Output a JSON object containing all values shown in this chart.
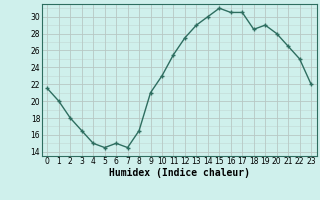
{
  "x": [
    0,
    1,
    2,
    3,
    4,
    5,
    6,
    7,
    8,
    9,
    10,
    11,
    12,
    13,
    14,
    15,
    16,
    17,
    18,
    19,
    20,
    21,
    22,
    23
  ],
  "y": [
    21.5,
    20.0,
    18.0,
    16.5,
    15.0,
    14.5,
    15.0,
    14.5,
    16.5,
    21.0,
    23.0,
    25.5,
    27.5,
    29.0,
    30.0,
    31.0,
    30.5,
    30.5,
    28.5,
    29.0,
    28.0,
    26.5,
    25.0,
    22.0
  ],
  "line_color": "#2e6e60",
  "marker": "+",
  "marker_size": 3.5,
  "bg_color": "#cff0ec",
  "grid_color_major": "#b8c8c4",
  "xlabel": "Humidex (Indice chaleur)",
  "xlim": [
    -0.5,
    23.5
  ],
  "ylim": [
    13.5,
    31.5
  ],
  "yticks": [
    14,
    16,
    18,
    20,
    22,
    24,
    26,
    28,
    30
  ],
  "xticks": [
    0,
    1,
    2,
    3,
    4,
    5,
    6,
    7,
    8,
    9,
    10,
    11,
    12,
    13,
    14,
    15,
    16,
    17,
    18,
    19,
    20,
    21,
    22,
    23
  ],
  "xtick_labels": [
    "0",
    "1",
    "2",
    "3",
    "4",
    "5",
    "6",
    "7",
    "8",
    "9",
    "10",
    "11",
    "12",
    "13",
    "14",
    "15",
    "16",
    "17",
    "18",
    "19",
    "20",
    "21",
    "22",
    "23"
  ],
  "tick_fontsize": 5.5,
  "xlabel_fontsize": 7,
  "line_width": 1.0
}
